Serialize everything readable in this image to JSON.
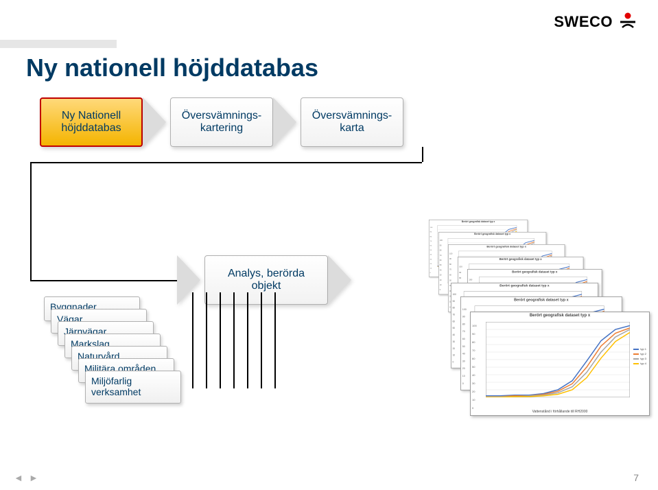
{
  "logo": {
    "text": "SWECO"
  },
  "title": "Ny nationell höjddatabas",
  "flow": {
    "box1": "Ny Nationell\nhöjddatabas",
    "box2": "Översvämnings-\nkartering",
    "box3": "Översvämnings-\nkarta",
    "analys": "Analys, berörda\nobjekt"
  },
  "inputs": [
    "Byggnader",
    "Vägar",
    "Järnvägar",
    "Markslag",
    "Naturvård",
    "Militära områden",
    "Miljöfarlig\nverksamhet"
  ],
  "chart": {
    "title": "Berört geografisk dataset typ x",
    "xlabel": "Vattenstånd i förhållande till RH2000",
    "colors": {
      "bg": "#ffffff",
      "grid": "#e0e0e0",
      "axis": "#999999",
      "s1": "#4472c4",
      "s2": "#ed7d31",
      "s3": "#a5a5a5",
      "s4": "#ffc000"
    },
    "xlim": [
      0,
      100
    ],
    "ylim": [
      0,
      100
    ],
    "series": {
      "s1": [
        2,
        2,
        3,
        3,
        5,
        10,
        22,
        48,
        75,
        90,
        95
      ],
      "s2": [
        1,
        1,
        2,
        2,
        4,
        8,
        18,
        40,
        68,
        85,
        92
      ],
      "s3": [
        1,
        1,
        1,
        2,
        3,
        6,
        14,
        33,
        60,
        80,
        90
      ],
      "s4": [
        0,
        0,
        1,
        1,
        2,
        4,
        10,
        26,
        52,
        74,
        86
      ]
    },
    "legend": [
      "typ 1",
      "typ 2",
      "typ 3",
      "typ 4"
    ],
    "yticks": [
      "0",
      "10",
      "20",
      "30",
      "40",
      "50",
      "60",
      "70",
      "80",
      "90",
      "100"
    ]
  },
  "nav": {
    "prev": "◄",
    "next": "►"
  },
  "page": "7"
}
